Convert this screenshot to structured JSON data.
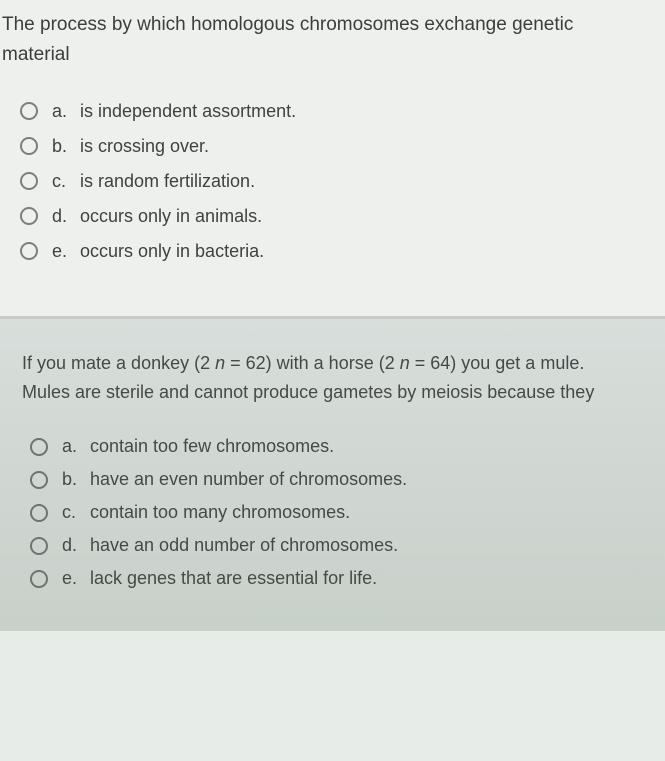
{
  "question1": {
    "text": "The process by which homologous chromosomes exchange genetic material",
    "options": [
      {
        "letter": "a.",
        "text": "is independent assortment."
      },
      {
        "letter": "b.",
        "text": "is crossing over."
      },
      {
        "letter": "c.",
        "text": "is random fertilization."
      },
      {
        "letter": "d.",
        "text": "occurs only in animals."
      },
      {
        "letter": "e.",
        "text": "occurs only in bacteria."
      }
    ]
  },
  "question2": {
    "text_pre": "If you mate a donkey (2 ",
    "text_n1": "n",
    "text_mid1": " = 62) with a horse (2 ",
    "text_n2": "n",
    "text_mid2": " = 64) you get a mule. Mules are sterile and cannot produce gametes by meiosis because they",
    "options": [
      {
        "letter": "a.",
        "text": "contain too few chromosomes."
      },
      {
        "letter": "b.",
        "text": "have an even number of chromosomes."
      },
      {
        "letter": "c.",
        "text": "contain too many chromosomes."
      },
      {
        "letter": "d.",
        "text": "have an odd number of chromosomes."
      },
      {
        "letter": "e.",
        "text": "lack genes that are essential for life."
      }
    ]
  },
  "colors": {
    "q1_bg": "#eef0ee",
    "q2_bg_top": "#d8dedb",
    "q2_bg_bottom": "#c8d0ca",
    "text_color": "#3a3e3c",
    "radio_border": "#7a807c"
  },
  "typography": {
    "question_fontsize": 19,
    "option_fontsize": 18,
    "font_family": "Arial"
  }
}
